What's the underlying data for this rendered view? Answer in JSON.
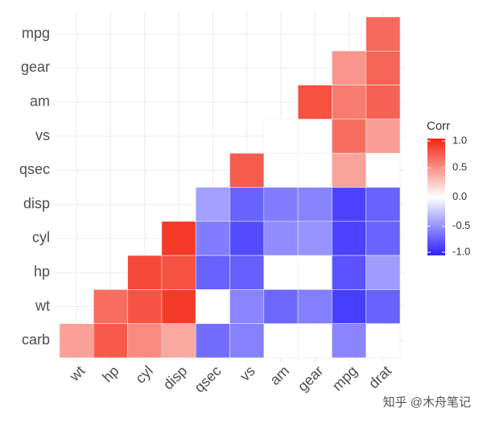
{
  "chart_data": {
    "type": "heatmap",
    "x_categories": [
      "wt",
      "hp",
      "cyl",
      "disp",
      "qsec",
      "vs",
      "am",
      "gear",
      "mpg",
      "drat"
    ],
    "series": [
      {
        "name": "mpg",
        "values": [
          null,
          null,
          null,
          null,
          null,
          null,
          null,
          null,
          null,
          0.68
        ]
      },
      {
        "name": "gear",
        "values": [
          null,
          null,
          null,
          null,
          null,
          null,
          null,
          null,
          0.48,
          0.7
        ]
      },
      {
        "name": "am",
        "values": [
          null,
          null,
          null,
          null,
          null,
          null,
          null,
          0.79,
          0.6,
          0.71
        ]
      },
      {
        "name": "vs",
        "values": [
          null,
          null,
          null,
          null,
          null,
          null,
          null,
          null,
          0.66,
          0.44
        ]
      },
      {
        "name": "qsec",
        "values": [
          null,
          null,
          null,
          null,
          null,
          0.74,
          null,
          null,
          0.42,
          null
        ]
      },
      {
        "name": "disp",
        "values": [
          null,
          null,
          null,
          null,
          -0.43,
          -0.71,
          -0.59,
          -0.56,
          -0.85,
          -0.71
        ]
      },
      {
        "name": "cyl",
        "values": [
          null,
          null,
          null,
          0.9,
          -0.59,
          -0.81,
          -0.52,
          -0.49,
          -0.85,
          -0.7
        ]
      },
      {
        "name": "hp",
        "values": [
          null,
          null,
          0.83,
          0.79,
          -0.71,
          -0.72,
          null,
          null,
          -0.78,
          -0.45
        ]
      },
      {
        "name": "wt",
        "values": [
          null,
          0.66,
          0.78,
          0.89,
          null,
          -0.55,
          -0.69,
          -0.58,
          -0.87,
          -0.71
        ]
      },
      {
        "name": "carb",
        "values": [
          0.43,
          0.75,
          0.53,
          0.39,
          -0.66,
          -0.57,
          null,
          null,
          -0.55,
          null
        ]
      }
    ],
    "colors": {
      "low": "#2b22ff",
      "mid": "#ffffff",
      "high": "#f3230f"
    },
    "legend_title": "Corr",
    "clim": [
      -1,
      1
    ],
    "cticks": [
      {
        "value": 1,
        "label": "1.0"
      },
      0.5,
      {
        "value": 0,
        "label": "0.0"
      },
      -0.5,
      {
        "value": -1,
        "label": "-1.0"
      }
    ]
  },
  "watermark": "知乎 @木舟笔记"
}
